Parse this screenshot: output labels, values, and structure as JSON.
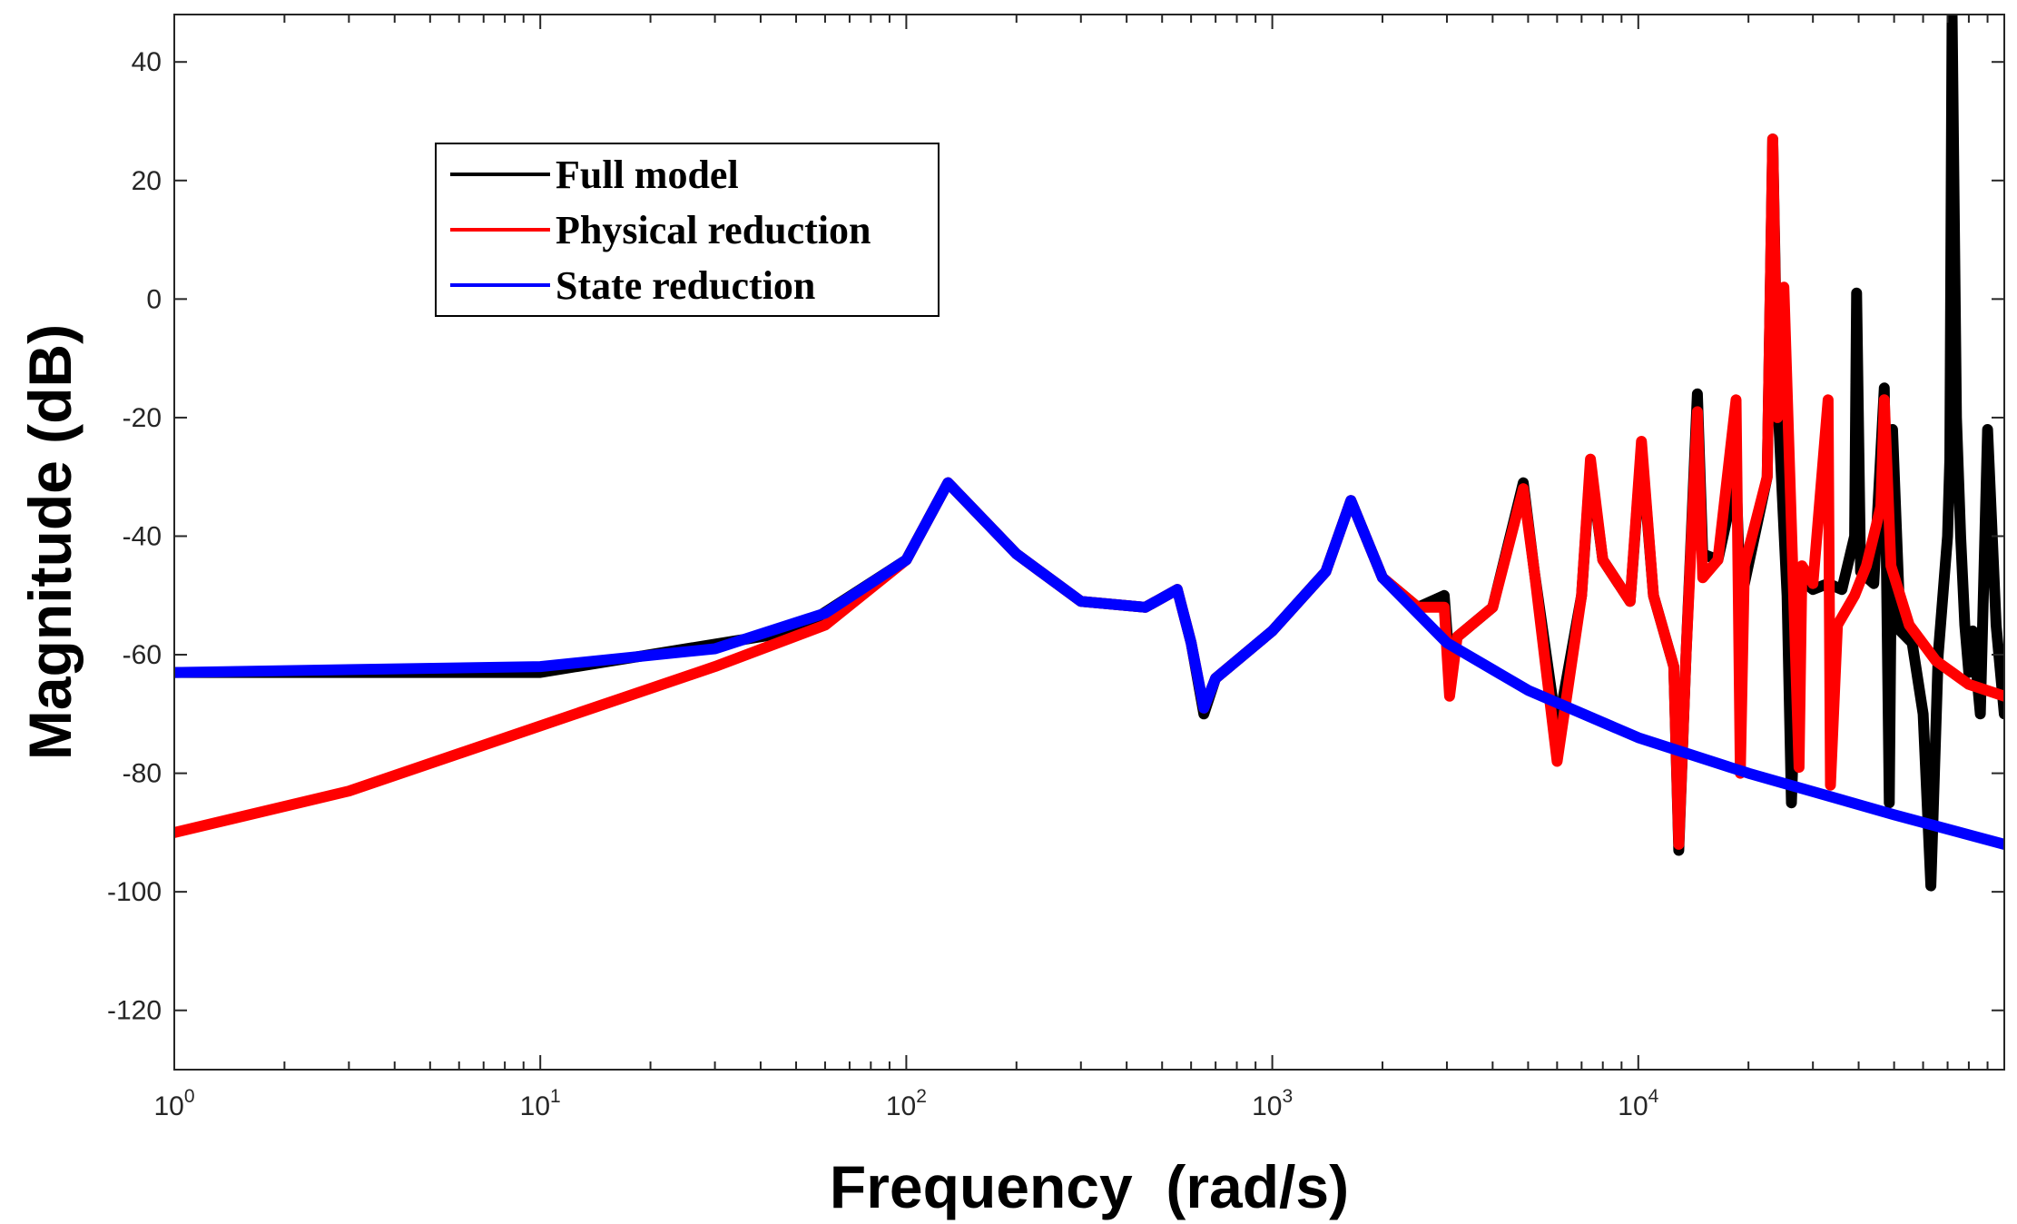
{
  "chart_data": {
    "type": "line",
    "xscale": "log",
    "xlim": [
      1,
      100000
    ],
    "ylim": [
      -130,
      48
    ],
    "xlabel": "Frequency  (rad/s)",
    "ylabel": "Magnitude (dB)",
    "grid": false,
    "legend_position": "top-left",
    "yticks": [
      -120,
      -100,
      -80,
      -60,
      -40,
      -20,
      0,
      20,
      40
    ],
    "ytick_labels": [
      "-120",
      "-100",
      "-80",
      "-60",
      "-40",
      "-20",
      "0",
      "20",
      "40"
    ],
    "xticks": [
      {
        "base": "10",
        "exp": "0",
        "value": 1
      },
      {
        "base": "10",
        "exp": "1",
        "value": 10
      },
      {
        "base": "10",
        "exp": "2",
        "value": 100
      },
      {
        "base": "10",
        "exp": "3",
        "value": 1000
      },
      {
        "base": "10",
        "exp": "4",
        "value": 10000
      }
    ],
    "series": [
      {
        "name": "Full model",
        "color": "#000000",
        "x": [
          1,
          10,
          50,
          100,
          130,
          200,
          300,
          450,
          550,
          600,
          650,
          700,
          1000,
          1400,
          1640,
          2000,
          2500,
          2950,
          3050,
          3200,
          4000,
          4850,
          5200,
          6000,
          7000,
          7400,
          8000,
          9500,
          10200,
          11000,
          12500,
          12900,
          13500,
          14500,
          15000,
          16500,
          18500,
          19000,
          19500,
          22500,
          23300,
          24000,
          25500,
          26200,
          27500,
          30000,
          33000,
          36000,
          39000,
          39500,
          40500,
          44000,
          47000,
          48500,
          49500,
          52000,
          56000,
          60000,
          63000,
          66000,
          70000,
          71000,
          72000,
          74000,
          76000,
          78000,
          80000,
          82000,
          86000,
          90000,
          95000,
          100000
        ],
        "y": [
          -63,
          -63,
          -56,
          -44,
          -31,
          -43,
          -51,
          -52,
          -49,
          -58,
          -70,
          -64,
          -56,
          -46,
          -34,
          -47,
          -52,
          -50,
          -62,
          -57,
          -52,
          -31,
          -46,
          -73,
          -50,
          -28,
          -44,
          -51,
          -25,
          -50,
          -62,
          -93,
          -60,
          -16,
          -43,
          -44,
          -30,
          -50,
          -48,
          -30,
          27,
          -16,
          -50,
          -85,
          -47,
          -49,
          -48,
          -49,
          -40,
          1,
          -46,
          -48,
          -15,
          -85,
          -22,
          -56,
          -58,
          -70,
          -99,
          -60,
          -40,
          -27,
          48,
          -20,
          -40,
          -55,
          -63,
          -56,
          -70,
          -22,
          -55,
          -70
        ]
      },
      {
        "name": "Physical reduction",
        "color": "#ff0000",
        "x": [
          1,
          3,
          10,
          30,
          60,
          100,
          130,
          200,
          300,
          450,
          550,
          600,
          650,
          700,
          1000,
          1400,
          1640,
          2000,
          2500,
          2950,
          3050,
          3200,
          4000,
          4850,
          5200,
          6000,
          7000,
          7400,
          8000,
          9500,
          10200,
          11000,
          12500,
          12900,
          13500,
          14500,
          15000,
          16500,
          18500,
          19000,
          19500,
          22500,
          23300,
          24000,
          25000,
          27500,
          28000,
          30000,
          33000,
          33500,
          35000,
          39000,
          42000,
          46000,
          47000,
          49000,
          55000,
          65000,
          80000,
          100000
        ],
        "y": [
          -90,
          -83,
          -72,
          -62,
          -55,
          -44,
          -31,
          -43,
          -51,
          -52,
          -49,
          -58,
          -69,
          -64,
          -56,
          -46,
          -34,
          -47,
          -52,
          -52,
          -67,
          -57,
          -52,
          -32,
          -46,
          -78,
          -50,
          -27,
          -44,
          -51,
          -24,
          -50,
          -62,
          -92,
          -60,
          -19,
          -47,
          -44,
          -17,
          -80,
          -45,
          -30,
          27,
          -20,
          2,
          -79,
          -45,
          -48,
          -17,
          -82,
          -55,
          -50,
          -45,
          -35,
          -17,
          -45,
          -55,
          -61,
          -65,
          -67
        ]
      },
      {
        "name": "State reduction",
        "color": "#0000ff",
        "x": [
          1,
          10,
          30,
          60,
          100,
          130,
          200,
          300,
          450,
          550,
          600,
          650,
          700,
          1000,
          1400,
          1640,
          2000,
          3000,
          5000,
          10000,
          20000,
          50000,
          100000
        ],
        "y": [
          -63,
          -62,
          -59,
          -53,
          -44,
          -31,
          -43,
          -51,
          -52,
          -49,
          -58,
          -69,
          -64,
          -56,
          -46,
          -34,
          -47,
          -58,
          -66,
          -74,
          -80,
          -87,
          -92
        ]
      }
    ]
  }
}
